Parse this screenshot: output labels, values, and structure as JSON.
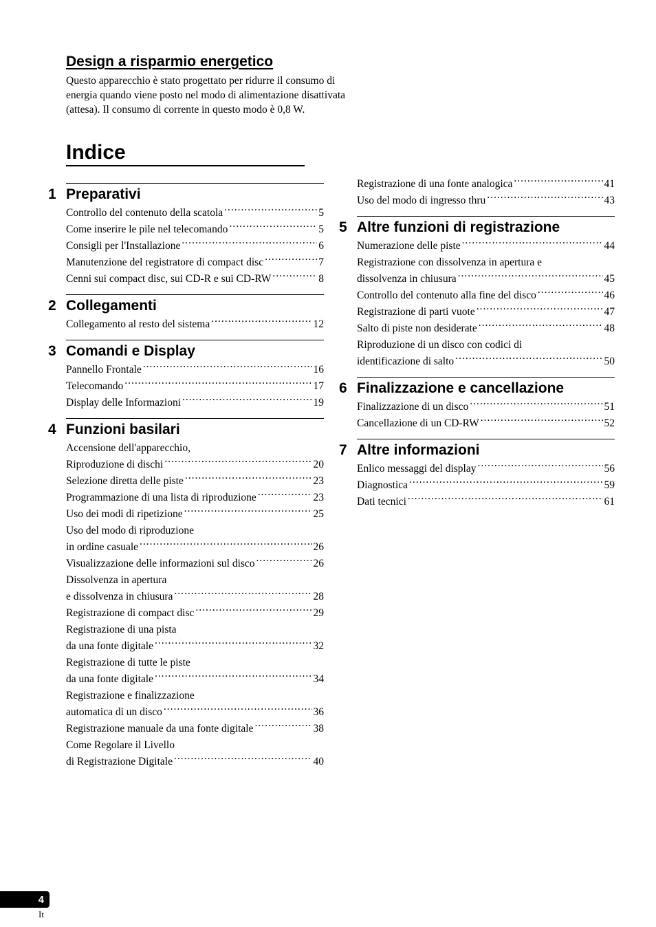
{
  "design": {
    "title": "Design a risparmio energetico",
    "paragraph": "Questo apparecchio è stato progettato per ridurre il consumo di energia quando viene posto nel modo di alimentazione disattivata (attesa). Il consumo di corrente in questo modo è 0,8 W."
  },
  "index_title": "Indice",
  "col1_sections": [
    {
      "num": "1",
      "title": "Preparativi",
      "entries": [
        {
          "lines": [
            "Controllo del contenuto della scatola"
          ],
          "page": "5"
        },
        {
          "lines": [
            "Come inserire le pile nel telecomando"
          ],
          "page": "5"
        },
        {
          "lines": [
            "Consigli per l'Installazione"
          ],
          "page": "6"
        },
        {
          "lines": [
            "Manutenzione del registratore di compact disc"
          ],
          "page": "7"
        },
        {
          "lines": [
            "Cenni sui compact disc, sui CD-R e sui CD-RW"
          ],
          "page": "8"
        }
      ]
    },
    {
      "num": "2",
      "title": "Collegamenti",
      "entries": [
        {
          "lines": [
            "Collegamento al resto del sistema"
          ],
          "page": "12"
        }
      ]
    },
    {
      "num": "3",
      "title": "Comandi e Display",
      "entries": [
        {
          "lines": [
            "Pannello Frontale"
          ],
          "page": "16"
        },
        {
          "lines": [
            "Telecomando"
          ],
          "page": "17"
        },
        {
          "lines": [
            "Display delle Informazioni"
          ],
          "page": "19"
        }
      ]
    },
    {
      "num": "4",
      "title": "Funzioni basilari",
      "entries": [
        {
          "lines": [
            "Accensione dell'apparecchio,",
            "Riproduzione di dischi"
          ],
          "page": "20"
        },
        {
          "lines": [
            "Selezione diretta delle piste"
          ],
          "page": "23"
        },
        {
          "lines": [
            "Programmazione di una lista di riproduzione"
          ],
          "page": "23"
        },
        {
          "lines": [
            "Uso dei modi di ripetizione"
          ],
          "page": "25"
        },
        {
          "lines": [
            "Uso del modo di riproduzione",
            "in ordine casuale"
          ],
          "page": "26"
        },
        {
          "lines": [
            "Visualizzazione delle informazioni sul disco"
          ],
          "page": "26"
        },
        {
          "lines": [
            "Dissolvenza in apertura",
            "e dissolvenza in chiusura"
          ],
          "page": "28"
        },
        {
          "lines": [
            "Registrazione di compact disc"
          ],
          "page": "29"
        },
        {
          "lines": [
            "Registrazione di una pista",
            "da una fonte digitale"
          ],
          "page": "32"
        },
        {
          "lines": [
            "Registrazione di tutte le piste",
            "da una fonte digitale"
          ],
          "page": "34"
        },
        {
          "lines": [
            "Registrazione e finalizzazione",
            "automatica di un disco"
          ],
          "page": "36"
        },
        {
          "lines": [
            "Registrazione manuale da una fonte digitale"
          ],
          "page": "38"
        },
        {
          "lines": [
            "Come Regolare il Livello",
            "di Registrazione Digitale"
          ],
          "page": "40"
        }
      ]
    }
  ],
  "col2_continuation": [
    {
      "lines": [
        "Registrazione di una fonte analogica"
      ],
      "page": "41"
    },
    {
      "lines": [
        "Uso del modo di ingresso thru"
      ],
      "page": "43"
    }
  ],
  "col2_sections": [
    {
      "num": "5",
      "title": "Altre funzioni di registrazione",
      "entries": [
        {
          "lines": [
            "Numerazione delle piste"
          ],
          "page": "44"
        },
        {
          "lines": [
            "Registrazione con dissolvenza in apertura e",
            "dissolvenza in chiusura"
          ],
          "page": "45"
        },
        {
          "lines": [
            "Controllo del contenuto alla fine del disco"
          ],
          "page": "46"
        },
        {
          "lines": [
            "Registrazione di parti vuote"
          ],
          "page": "47"
        },
        {
          "lines": [
            "Salto di piste non desiderate"
          ],
          "page": "48"
        },
        {
          "lines": [
            "Riproduzione di un disco con codici di",
            "identificazione di salto"
          ],
          "page": "50"
        }
      ]
    },
    {
      "num": "6",
      "title": "Finalizzazione e cancellazione",
      "entries": [
        {
          "lines": [
            "Finalizzazione di un disco"
          ],
          "page": "51"
        },
        {
          "lines": [
            "Cancellazione di un CD-RW"
          ],
          "page": "52"
        }
      ]
    },
    {
      "num": "7",
      "title": "Altre informazioni",
      "entries": [
        {
          "lines": [
            "Enlico messaggi del display"
          ],
          "page": "56"
        },
        {
          "lines": [
            "Diagnostica"
          ],
          "page": "59"
        },
        {
          "lines": [
            "Dati tecnici"
          ],
          "page": "61"
        }
      ]
    }
  ],
  "page_number": "4",
  "lang": "It"
}
